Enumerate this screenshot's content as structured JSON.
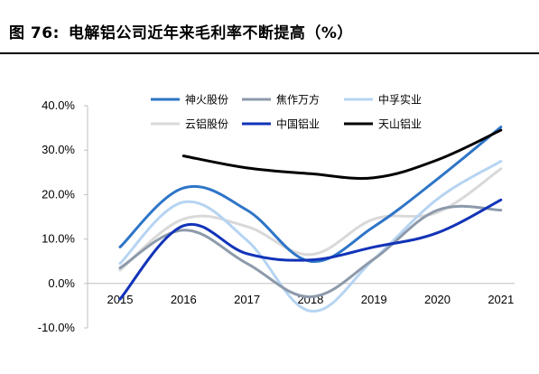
{
  "figure": {
    "number": "图 76:",
    "title": "电解铝公司近年来毛利率不断提高（%）"
  },
  "chart_data": {
    "type": "line",
    "title": "电解铝公司近年来毛利率不断提高（%）",
    "xlabel": "",
    "ylabel": "",
    "x": [
      "2015",
      "2016",
      "2017",
      "2018",
      "2019",
      "2020",
      "2021"
    ],
    "ylim": [
      -0.1,
      0.4
    ],
    "yticks": [
      -0.1,
      0.0,
      0.1,
      0.2,
      0.3,
      0.4
    ],
    "ytick_labels": [
      "-10.0%",
      "0.0%",
      "10.0%",
      "20.0%",
      "30.0%",
      "40.0%"
    ],
    "grid": false,
    "legend_position": "top",
    "series": [
      {
        "name": "神火股份",
        "color": "#2e75c7",
        "values": [
          0.082,
          0.215,
          0.165,
          0.05,
          0.128,
          0.235,
          0.352
        ]
      },
      {
        "name": "焦作万方",
        "color": "#8d9aab",
        "values": [
          0.035,
          0.12,
          0.045,
          -0.03,
          0.055,
          0.165,
          0.165
        ]
      },
      {
        "name": "中孚实业",
        "color": "#b6d4f2",
        "values": [
          0.045,
          0.183,
          0.097,
          -0.062,
          0.055,
          0.19,
          0.275
        ]
      },
      {
        "name": "云铝股份",
        "color": "#d9d9d9",
        "values": [
          0.03,
          0.145,
          0.128,
          0.065,
          0.145,
          0.16,
          0.258
        ]
      },
      {
        "name": "中国铝业",
        "color": "#1233b8",
        "values": [
          -0.035,
          0.13,
          0.067,
          0.053,
          0.082,
          0.114,
          0.188
        ]
      },
      {
        "name": "天山铝业",
        "color": "#000000",
        "values": [
          null,
          0.287,
          0.26,
          0.247,
          0.238,
          0.278,
          0.345
        ]
      }
    ]
  }
}
